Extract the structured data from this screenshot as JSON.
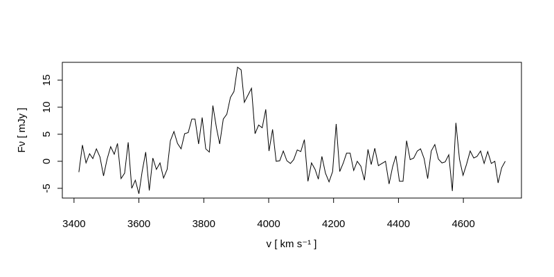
{
  "chart_data": {
    "type": "line",
    "xlabel": "v [ km s⁻¹ ]",
    "ylabel": "Fν [ mJy ]",
    "xlim": [
      3364,
      4779
    ],
    "ylim": [
      -6.8,
      18.3
    ],
    "xticks": [
      3400,
      3600,
      3800,
      4000,
      4200,
      4400,
      4600
    ],
    "yticks": [
      -5,
      0,
      5,
      10,
      15
    ],
    "color": "#000000",
    "x": [
      3415,
      3426,
      3437,
      3448,
      3458,
      3469,
      3480,
      3491,
      3502,
      3513,
      3524,
      3534,
      3545,
      3556,
      3567,
      3578,
      3589,
      3600,
      3610,
      3621,
      3632,
      3643,
      3654,
      3665,
      3676,
      3687,
      3697,
      3708,
      3719,
      3730,
      3741,
      3752,
      3763,
      3773,
      3784,
      3795,
      3806,
      3817,
      3828,
      3839,
      3849,
      3860,
      3871,
      3882,
      3893,
      3904,
      3915,
      3925,
      3936,
      3947,
      3958,
      3969,
      3980,
      3991,
      4001,
      4012,
      4023,
      4034,
      4045,
      4056,
      4067,
      4077,
      4088,
      4099,
      4110,
      4121,
      4132,
      4143,
      4153,
      4164,
      4175,
      4186,
      4197,
      4208,
      4219,
      4230,
      4240,
      4251,
      4262,
      4273,
      4284,
      4295,
      4306,
      4316,
      4327,
      4338,
      4349,
      4360,
      4371,
      4382,
      4392,
      4403,
      4414,
      4425,
      4436,
      4447,
      4458,
      4468,
      4479,
      4490,
      4501,
      4512,
      4523,
      4534,
      4544,
      4555,
      4566,
      4577,
      4588,
      4599,
      4610,
      4621,
      4632,
      4642,
      4653,
      4664,
      4675,
      4686,
      4697,
      4707,
      4718,
      4729
    ],
    "values": [
      -2,
      3,
      -0.3,
      1.4,
      0.5,
      2.3,
      0.8,
      -2.7,
      0.4,
      2.7,
      1.3,
      3.3,
      -3.2,
      -2.2,
      3.5,
      -5,
      -3.5,
      -6,
      -1.9,
      1.7,
      -5.4,
      0.6,
      -1.5,
      -0.3,
      -3.1,
      -1.5,
      3.8,
      5.5,
      3.3,
      2.3,
      5.1,
      5.3,
      7.8,
      7.8,
      3.2,
      8.1,
      2.3,
      1.7,
      10.3,
      6.2,
      3.2,
      7.8,
      8.7,
      11.8,
      12.9,
      17.4,
      16.9,
      10.9,
      12.2,
      13.5,
      5.1,
      6.7,
      6.2,
      9.6,
      1.9,
      5.9,
      0,
      0.1,
      1.9,
      0.1,
      -0.4,
      0.3,
      2.1,
      1.8,
      4,
      -3.7,
      -0.3,
      -1.5,
      -3.3,
      0.9,
      -2.2,
      -3.8,
      -1.9,
      6.9,
      -1.9,
      -0.3,
      1.5,
      1.5,
      -1.7,
      0,
      -0.9,
      -3.5,
      2.2,
      -0.6,
      2.4,
      -0.8,
      -0.4,
      0,
      -4.2,
      -1,
      1,
      -3.7,
      -3.7,
      3.8,
      0.3,
      0.6,
      1.9,
      2.3,
      0.5,
      -3.2,
      1.9,
      3.1,
      0.4,
      -0.3,
      -0.1,
      1.2,
      -5.5,
      7.1,
      0.4,
      -2.6,
      -0.5,
      1.9,
      0.6,
      0.9,
      1.9,
      -0.4,
      1.8,
      -0.4,
      0,
      -4,
      -1.2,
      0
    ]
  }
}
